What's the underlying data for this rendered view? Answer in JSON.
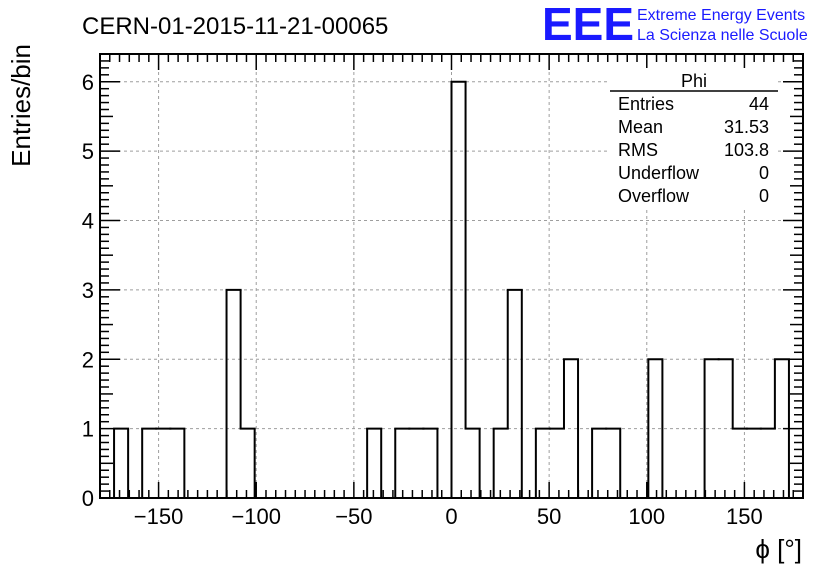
{
  "title": "CERN-01-2015-11-21-00065",
  "logo": {
    "mark": "EEE",
    "line1": "Extreme Energy Events",
    "line2": "La Scienza nelle Scuole",
    "color": "#1a1aff"
  },
  "stats": {
    "name": "Phi",
    "rows": [
      {
        "label": "Entries",
        "value": "44"
      },
      {
        "label": "Mean",
        "value": "31.53"
      },
      {
        "label": "RMS",
        "value": "103.8"
      },
      {
        "label": "Underflow",
        "value": "0"
      },
      {
        "label": "Overflow",
        "value": "0"
      }
    ]
  },
  "chart_data": {
    "type": "bar",
    "histogram": true,
    "xlabel": "ϕ [°]",
    "ylabel": "Entries/bin",
    "xlim": [
      -180,
      180
    ],
    "ylim": [
      0,
      6.4
    ],
    "grid": true,
    "legend": "top-right",
    "bin_edges": [
      -172.8,
      -165.6,
      -158.4,
      -151.2,
      -144,
      -136.8,
      -129.6,
      -122.4,
      -115.2,
      -108,
      -100.8,
      -93.6,
      -86.4,
      -79.2,
      -72,
      -64.8,
      -57.6,
      -50.4,
      -43.2,
      -36,
      -28.8,
      -21.6,
      -14.4,
      -7.2,
      0,
      7.2,
      14.4,
      21.6,
      28.8,
      36,
      43.2,
      50.4,
      57.6,
      64.8,
      72,
      79.2,
      86.4,
      93.6,
      100.8,
      108,
      115.2,
      122.4,
      129.6,
      136.8,
      144,
      151.2,
      158.4,
      165.6
    ],
    "values": [
      1,
      0,
      1,
      1,
      1,
      0,
      0,
      0,
      3,
      1,
      0,
      0,
      0,
      0,
      0,
      0,
      0,
      0,
      1,
      0,
      1,
      1,
      1,
      0,
      6,
      1,
      0,
      1,
      3,
      0,
      1,
      1,
      2,
      0,
      1,
      1,
      0,
      0,
      2,
      0,
      0,
      0,
      2,
      2,
      1,
      1,
      1,
      2
    ],
    "x_ticks": [
      -150,
      -100,
      -50,
      0,
      50,
      100,
      150
    ],
    "x_tick_labels": [
      "−150",
      "−100",
      "−50",
      "0",
      "50",
      "100",
      "150"
    ],
    "y_ticks": [
      0,
      1,
      2,
      3,
      4,
      5,
      6
    ],
    "y_tick_labels": [
      "0",
      "1",
      "2",
      "3",
      "4",
      "5",
      "6"
    ],
    "colors": {
      "line": "#000000",
      "grid": "#9e9e9e",
      "background": "#ffffff"
    }
  }
}
